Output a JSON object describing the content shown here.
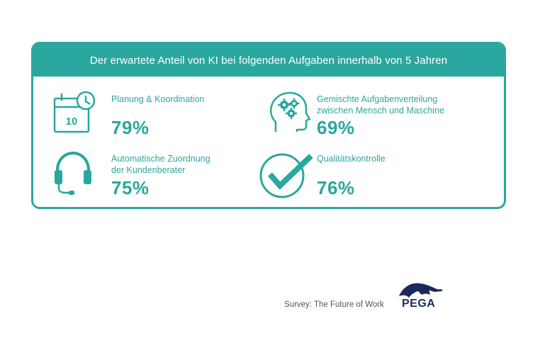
{
  "card": {
    "title": "Der erwartete Anteil von KI bei folgenden Aufgaben innerhalb von 5 Jahren",
    "items": [
      {
        "icon": "calendar-clock-icon",
        "calendar_day": "10",
        "label_lines": [
          "Planung & Koordination"
        ],
        "value": "79%"
      },
      {
        "icon": "head-gears-icon",
        "label_lines": [
          "Gemischte Aufgabenverteilung",
          "zwischen Mensch und Maschine"
        ],
        "value": "69%"
      },
      {
        "icon": "headset-icon",
        "label_lines": [
          "Automatische Zuordnung",
          "der Kundenberater"
        ],
        "value": "75%"
      },
      {
        "icon": "check-circle-icon",
        "label_lines": [
          "Qualitätskontrolle"
        ],
        "value": "76%"
      }
    ]
  },
  "footer": {
    "source": "Survey: The Future of Work",
    "brand": "PEGA",
    "logo_icon": "pega-logo-icon"
  },
  "colors": {
    "accent": "#2aa79f",
    "brand": "#1b2a5c"
  }
}
